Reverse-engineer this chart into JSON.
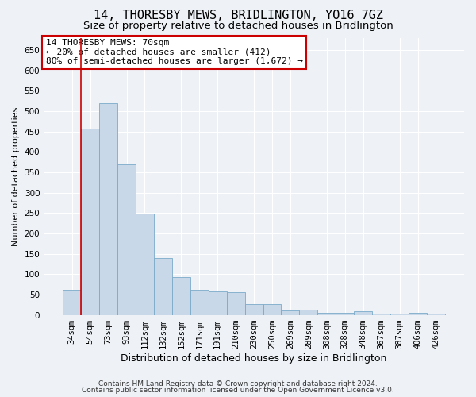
{
  "title": "14, THORESBY MEWS, BRIDLINGTON, YO16 7GZ",
  "subtitle": "Size of property relative to detached houses in Bridlington",
  "xlabel": "Distribution of detached houses by size in Bridlington",
  "ylabel": "Number of detached properties",
  "footer_line1": "Contains HM Land Registry data © Crown copyright and database right 2024.",
  "footer_line2": "Contains public sector information licensed under the Open Government Licence v3.0.",
  "categories": [
    "34sqm",
    "54sqm",
    "73sqm",
    "93sqm",
    "112sqm",
    "132sqm",
    "152sqm",
    "171sqm",
    "191sqm",
    "210sqm",
    "230sqm",
    "250sqm",
    "269sqm",
    "289sqm",
    "308sqm",
    "328sqm",
    "348sqm",
    "367sqm",
    "387sqm",
    "406sqm",
    "426sqm"
  ],
  "values": [
    62,
    457,
    520,
    370,
    248,
    140,
    93,
    62,
    58,
    55,
    26,
    26,
    11,
    12,
    6,
    5,
    9,
    4,
    3,
    6,
    3
  ],
  "bar_color": "#c8d8e8",
  "bar_edge_color": "#7aaac8",
  "highlight_bar_index": 1,
  "highlight_line_color": "#cc0000",
  "annotation_line1": "14 THORESBY MEWS: 70sqm",
  "annotation_line2": "← 20% of detached houses are smaller (412)",
  "annotation_line3": "80% of semi-detached houses are larger (1,672) →",
  "annotation_box_color": "#ffffff",
  "annotation_box_edge_color": "#cc0000",
  "ylim": [
    0,
    680
  ],
  "yticks": [
    0,
    50,
    100,
    150,
    200,
    250,
    300,
    350,
    400,
    450,
    500,
    550,
    600,
    650
  ],
  "background_color": "#eef2f7",
  "grid_color": "#ffffff",
  "title_fontsize": 11,
  "subtitle_fontsize": 9.5,
  "xlabel_fontsize": 9,
  "ylabel_fontsize": 8,
  "tick_fontsize": 7.5,
  "footer_fontsize": 6.5
}
